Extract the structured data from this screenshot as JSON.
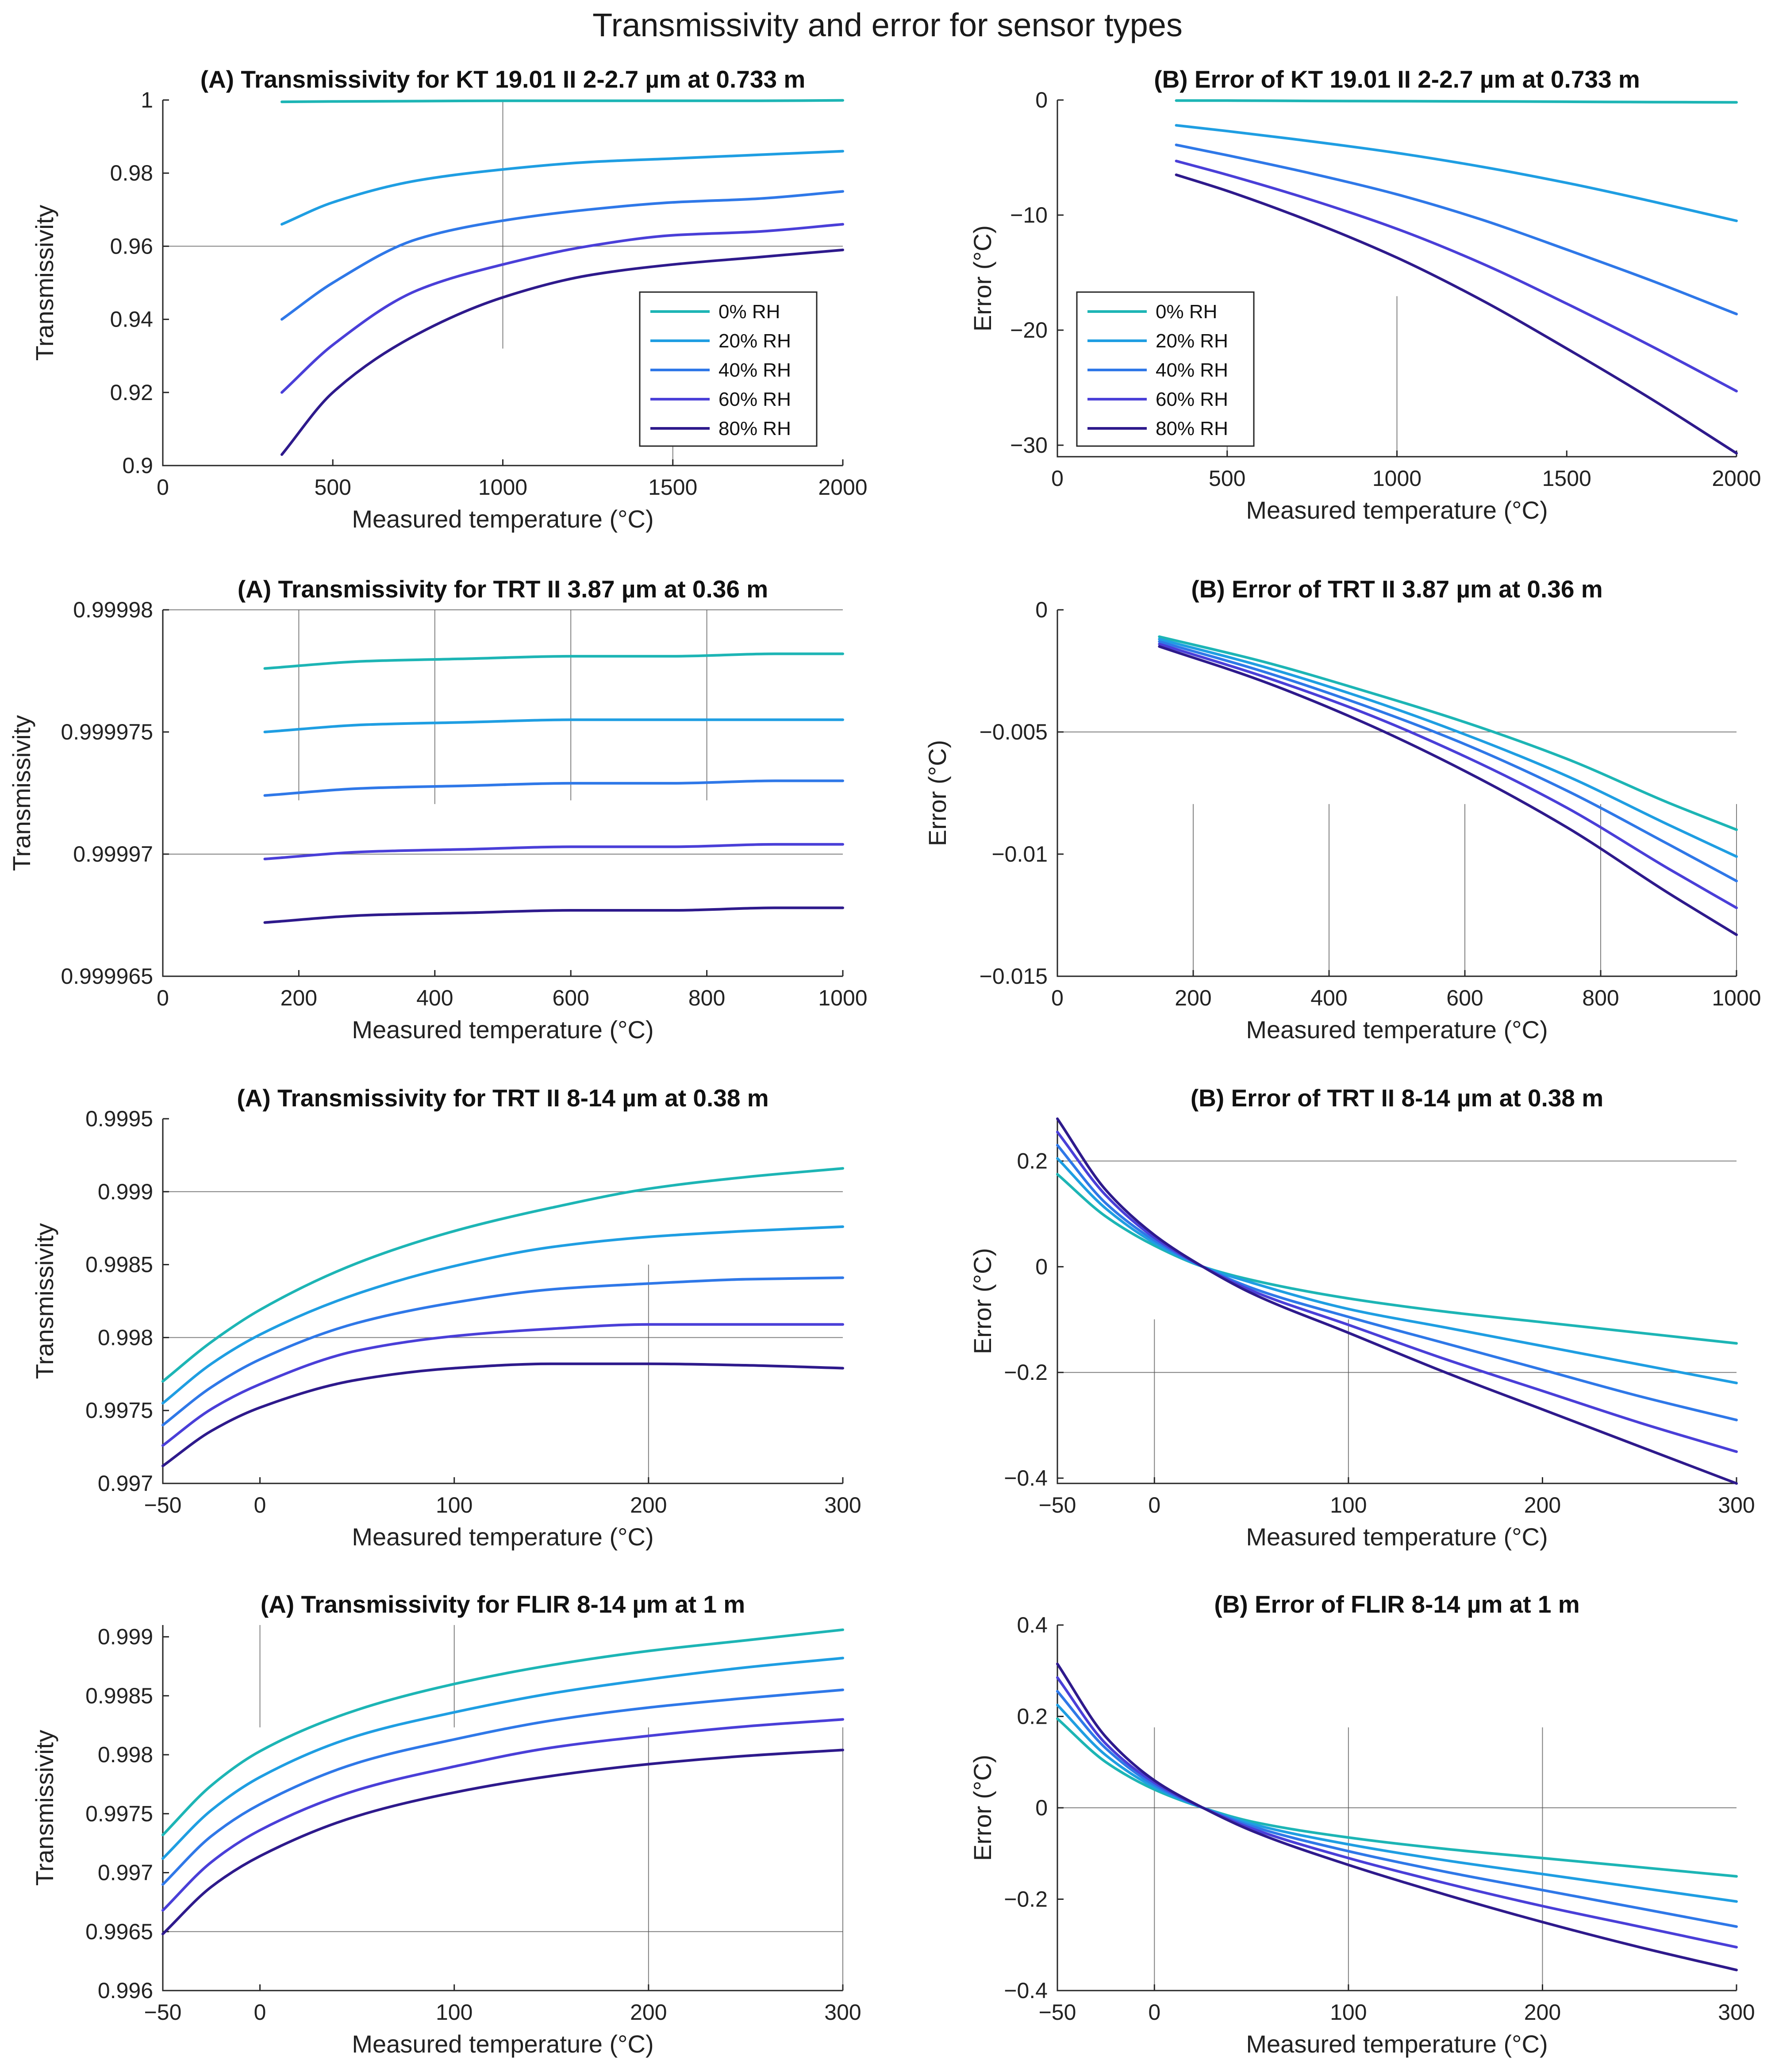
{
  "figure": {
    "title": "Transmissivity and error for sensor types"
  },
  "legend": {
    "labels": [
      "0% RH",
      "20% RH",
      "40% RH",
      "60% RH",
      "80% RH"
    ]
  },
  "colors": [
    "#1db5b5",
    "#1f9ee2",
    "#2f78e8",
    "#4a3fd8",
    "#2e1a8c"
  ],
  "chart_data": [
    {
      "id": "kt_trans",
      "type": "line",
      "title": "(A) Transmissivity for KT 19.01 II 2-2.7 µm at 0.733 m",
      "xlabel": "Measured temperature (°C)",
      "ylabel": "Transmissivity",
      "xlim": [
        0,
        2000
      ],
      "ylim": [
        0.9,
        1
      ],
      "xticks": [
        0,
        500,
        1000,
        1500,
        2000
      ],
      "xtick_labels": [
        "0",
        "500",
        "1000",
        "1500",
        "2000"
      ],
      "yticks": [
        0.9,
        0.92,
        0.94,
        0.96,
        0.98,
        1
      ],
      "ytick_labels": [
        "0.9",
        "0.92",
        "0.94",
        "0.96",
        "0.98",
        "1"
      ],
      "legend": true,
      "x": [
        350,
        500,
        750,
        1000,
        1250,
        1500,
        1750,
        2000
      ],
      "series": [
        {
          "name": "0% RH",
          "values": [
            0.9995,
            0.9996,
            0.9997,
            0.9998,
            0.9998,
            0.9998,
            0.9998,
            0.9999
          ]
        },
        {
          "name": "20% RH",
          "values": [
            0.966,
            0.972,
            0.978,
            0.981,
            0.983,
            0.984,
            0.985,
            0.986
          ]
        },
        {
          "name": "40% RH",
          "values": [
            0.94,
            0.95,
            0.962,
            0.967,
            0.97,
            0.972,
            0.973,
            0.975
          ]
        },
        {
          "name": "60% RH",
          "values": [
            0.92,
            0.933,
            0.948,
            0.955,
            0.96,
            0.963,
            0.964,
            0.966
          ]
        },
        {
          "name": "80% RH",
          "values": [
            0.903,
            0.92,
            0.936,
            0.946,
            0.952,
            0.955,
            0.957,
            0.959
          ]
        }
      ]
    },
    {
      "id": "kt_err",
      "type": "line",
      "title": "(B) Error of KT 19.01 II 2-2.7 µm at 0.733 m",
      "xlabel": "Measured temperature (°C)",
      "ylabel": "Error (°C)",
      "xlim": [
        0,
        2000
      ],
      "ylim": [
        -31,
        0
      ],
      "xticks": [
        0,
        500,
        1000,
        1500,
        2000
      ],
      "xtick_labels": [
        "0",
        "500",
        "1000",
        "1500",
        "2000"
      ],
      "yticks": [
        -30,
        -20,
        -10,
        0
      ],
      "ytick_labels": [
        "−30",
        "−20",
        "−10",
        "0"
      ],
      "legend": true,
      "x": [
        350,
        500,
        750,
        1000,
        1250,
        1500,
        1750,
        2000
      ],
      "series": [
        {
          "name": "0% RH",
          "values": [
            -0.05,
            -0.05,
            -0.08,
            -0.1,
            -0.12,
            -0.15,
            -0.18,
            -0.2
          ]
        },
        {
          "name": "20% RH",
          "values": [
            -2.2,
            -2.7,
            -3.6,
            -4.6,
            -5.8,
            -7.2,
            -8.8,
            -10.5
          ]
        },
        {
          "name": "40% RH",
          "values": [
            -3.9,
            -4.8,
            -6.4,
            -8.2,
            -10.4,
            -13.0,
            -15.7,
            -18.6
          ]
        },
        {
          "name": "60% RH",
          "values": [
            -5.3,
            -6.5,
            -8.7,
            -11.2,
            -14.2,
            -17.7,
            -21.4,
            -25.3
          ]
        },
        {
          "name": "80% RH",
          "values": [
            -6.5,
            -7.9,
            -10.6,
            -13.7,
            -17.4,
            -21.6,
            -26.0,
            -30.7
          ]
        }
      ]
    },
    {
      "id": "trt387_trans",
      "type": "line",
      "title": "(A) Transmissivity for TRT II 3.87 µm at 0.36 m",
      "xlabel": "Measured temperature (°C)",
      "ylabel": "Transmissivity",
      "xlim": [
        0,
        1000
      ],
      "ylim": [
        0.999965,
        0.99998
      ],
      "xticks": [
        0,
        200,
        400,
        600,
        800,
        1000
      ],
      "xtick_labels": [
        "0",
        "200",
        "400",
        "600",
        "800",
        "1000"
      ],
      "yticks": [
        0.999965,
        0.99997,
        0.999975,
        0.99998
      ],
      "ytick_labels": [
        "0.999965",
        "0.99997",
        "0.999975",
        "0.99998"
      ],
      "legend": false,
      "x": [
        150,
        300,
        450,
        600,
        750,
        900,
        1000
      ],
      "series": [
        {
          "name": "0% RH",
          "values": [
            0.9999776,
            0.9999779,
            0.999978,
            0.9999781,
            0.9999781,
            0.9999782,
            0.9999782
          ]
        },
        {
          "name": "20% RH",
          "values": [
            0.999975,
            0.9999753,
            0.9999754,
            0.9999755,
            0.9999755,
            0.9999755,
            0.9999755
          ]
        },
        {
          "name": "40% RH",
          "values": [
            0.9999724,
            0.9999727,
            0.9999728,
            0.9999729,
            0.9999729,
            0.999973,
            0.999973
          ]
        },
        {
          "name": "60% RH",
          "values": [
            0.9999698,
            0.9999701,
            0.9999702,
            0.9999703,
            0.9999703,
            0.9999704,
            0.9999704
          ]
        },
        {
          "name": "80% RH",
          "values": [
            0.9999672,
            0.9999675,
            0.9999676,
            0.9999677,
            0.9999677,
            0.9999678,
            0.9999678
          ]
        }
      ]
    },
    {
      "id": "trt387_err",
      "type": "line",
      "title": "(B) Error of TRT II 3.87 µm at 0.36 m",
      "xlabel": "Measured temperature (°C)",
      "ylabel": "Error (°C)",
      "xlim": [
        0,
        1000
      ],
      "ylim": [
        -0.015,
        0
      ],
      "xticks": [
        0,
        200,
        400,
        600,
        800,
        1000
      ],
      "xtick_labels": [
        "0",
        "200",
        "400",
        "600",
        "800",
        "1000"
      ],
      "yticks": [
        -0.015,
        -0.01,
        -0.005,
        0
      ],
      "ytick_labels": [
        "−0.015",
        "−0.01",
        "−0.005",
        "0"
      ],
      "legend": false,
      "x": [
        150,
        300,
        450,
        600,
        750,
        900,
        1000
      ],
      "series": [
        {
          "name": "0% RH",
          "values": [
            -0.0011,
            -0.0021,
            -0.0033,
            -0.0046,
            -0.0061,
            -0.0079,
            -0.009
          ]
        },
        {
          "name": "20% RH",
          "values": [
            -0.0012,
            -0.0023,
            -0.0036,
            -0.0051,
            -0.0068,
            -0.0088,
            -0.0101
          ]
        },
        {
          "name": "40% RH",
          "values": [
            -0.0013,
            -0.0025,
            -0.0039,
            -0.0055,
            -0.0074,
            -0.0096,
            -0.0111
          ]
        },
        {
          "name": "60% RH",
          "values": [
            -0.0014,
            -0.0027,
            -0.0042,
            -0.006,
            -0.0081,
            -0.0106,
            -0.0122
          ]
        },
        {
          "name": "80% RH",
          "values": [
            -0.0015,
            -0.0029,
            -0.0046,
            -0.0066,
            -0.0089,
            -0.0116,
            -0.0133
          ]
        }
      ]
    },
    {
      "id": "trt814_trans",
      "type": "line",
      "title": "(A) Transmissivity for TRT II 8-14 µm at 0.38 m",
      "xlabel": "Measured temperature (°C)",
      "ylabel": "Transmissivity",
      "xlim": [
        -50,
        300
      ],
      "ylim": [
        0.997,
        0.9995
      ],
      "xticks": [
        -50,
        0,
        100,
        200,
        300
      ],
      "xtick_labels": [
        "−50",
        "0",
        "100",
        "200",
        "300"
      ],
      "yticks": [
        0.997,
        0.9975,
        0.998,
        0.9985,
        0.999,
        0.9995
      ],
      "ytick_labels": [
        "0.997",
        "0.9975",
        "0.998",
        "0.9985",
        "0.999",
        "0.9995"
      ],
      "legend": false,
      "x": [
        -50,
        -25,
        0,
        50,
        100,
        150,
        200,
        250,
        300
      ],
      "series": [
        {
          "name": "0% RH",
          "values": [
            0.9977,
            0.99797,
            0.99819,
            0.99851,
            0.99873,
            0.99889,
            0.99902,
            0.9991,
            0.99916
          ]
        },
        {
          "name": "20% RH",
          "values": [
            0.99755,
            0.99782,
            0.99802,
            0.9983,
            0.99849,
            0.99862,
            0.99869,
            0.99873,
            0.99876
          ]
        },
        {
          "name": "40% RH",
          "values": [
            0.9974,
            0.99766,
            0.99785,
            0.9981,
            0.99824,
            0.99833,
            0.99837,
            0.9984,
            0.99841
          ]
        },
        {
          "name": "60% RH",
          "values": [
            0.99726,
            0.99751,
            0.99768,
            0.99791,
            0.99801,
            0.99806,
            0.99809,
            0.99809,
            0.99809
          ]
        },
        {
          "name": "80% RH",
          "values": [
            0.99712,
            0.99736,
            0.99752,
            0.99771,
            0.99779,
            0.99782,
            0.99782,
            0.99781,
            0.99779
          ]
        }
      ]
    },
    {
      "id": "trt814_err",
      "type": "line",
      "title": "(B) Error of TRT II 8-14 µm at 0.38 m",
      "xlabel": "Measured temperature (°C)",
      "ylabel": "Error (°C)",
      "xlim": [
        -50,
        300
      ],
      "ylim": [
        -0.41,
        0.28
      ],
      "xticks": [
        -50,
        0,
        100,
        200,
        300
      ],
      "xtick_labels": [
        "−50",
        "0",
        "100",
        "200",
        "300"
      ],
      "yticks": [
        -0.4,
        -0.2,
        0,
        0.2
      ],
      "ytick_labels": [
        "−0.4",
        "−0.2",
        "0",
        "0.2"
      ],
      "legend": false,
      "x": [
        -50,
        -25,
        0,
        25,
        50,
        100,
        150,
        200,
        250,
        300
      ],
      "series": [
        {
          "name": "0% RH",
          "values": [
            0.175,
            0.095,
            0.04,
            0.0,
            -0.025,
            -0.06,
            -0.085,
            -0.105,
            -0.125,
            -0.145
          ]
        },
        {
          "name": "20% RH",
          "values": [
            0.205,
            0.11,
            0.045,
            0.0,
            -0.03,
            -0.08,
            -0.115,
            -0.15,
            -0.185,
            -0.22
          ]
        },
        {
          "name": "40% RH",
          "values": [
            0.23,
            0.12,
            0.05,
            0.0,
            -0.04,
            -0.095,
            -0.145,
            -0.195,
            -0.245,
            -0.29
          ]
        },
        {
          "name": "60% RH",
          "values": [
            0.255,
            0.135,
            0.055,
            0.0,
            -0.045,
            -0.11,
            -0.175,
            -0.235,
            -0.295,
            -0.35
          ]
        },
        {
          "name": "80% RH",
          "values": [
            0.28,
            0.145,
            0.06,
            0.0,
            -0.05,
            -0.125,
            -0.2,
            -0.27,
            -0.34,
            -0.41
          ]
        }
      ]
    },
    {
      "id": "flir_trans",
      "type": "line",
      "title": "(A) Transmissivity for FLIR 8-14 µm at 1 m",
      "xlabel": "Measured temperature (°C)",
      "ylabel": "Transmissivity",
      "xlim": [
        -50,
        300
      ],
      "ylim": [
        0.996,
        0.9991
      ],
      "xticks": [
        -50,
        0,
        100,
        200,
        300
      ],
      "xtick_labels": [
        "−50",
        "0",
        "100",
        "200",
        "300"
      ],
      "yticks": [
        0.996,
        0.9965,
        0.997,
        0.9975,
        0.998,
        0.9985,
        0.999
      ],
      "ytick_labels": [
        "0.996",
        "0.9965",
        "0.997",
        "0.9975",
        "0.998",
        "0.9985",
        "0.999"
      ],
      "legend": false,
      "x": [
        -50,
        -25,
        0,
        50,
        100,
        150,
        200,
        250,
        300
      ],
      "series": [
        {
          "name": "0% RH",
          "values": [
            0.99732,
            0.99774,
            0.99803,
            0.99838,
            0.9986,
            0.99876,
            0.99888,
            0.99897,
            0.99906
          ]
        },
        {
          "name": "20% RH",
          "values": [
            0.99712,
            0.99753,
            0.99781,
            0.99816,
            0.99836,
            0.99852,
            0.99864,
            0.99874,
            0.99882
          ]
        },
        {
          "name": "40% RH",
          "values": [
            0.9969,
            0.99731,
            0.99758,
            0.99793,
            0.99813,
            0.99829,
            0.9984,
            0.99848,
            0.99855
          ]
        },
        {
          "name": "60% RH",
          "values": [
            0.99668,
            0.99709,
            0.99736,
            0.9977,
            0.9979,
            0.99806,
            0.99816,
            0.99824,
            0.9983
          ]
        },
        {
          "name": "80% RH",
          "values": [
            0.99648,
            0.99688,
            0.99714,
            0.99748,
            0.99768,
            0.99782,
            0.99792,
            0.99799,
            0.99804
          ]
        }
      ]
    },
    {
      "id": "flir_err",
      "type": "line",
      "title": "(B) Error of FLIR 8-14 µm at 1 m",
      "xlabel": "Measured temperature (°C)",
      "ylabel": "Error (°C)",
      "xlim": [
        -50,
        300
      ],
      "ylim": [
        -0.4,
        0.4
      ],
      "xticks": [
        -50,
        0,
        100,
        200,
        300
      ],
      "xtick_labels": [
        "−50",
        "0",
        "100",
        "200",
        "300"
      ],
      "yticks": [
        -0.4,
        -0.2,
        0,
        0.2,
        0.4
      ],
      "ytick_labels": [
        "−0.4",
        "−0.2",
        "0",
        "0.2",
        "0.4"
      ],
      "legend": false,
      "x": [
        -50,
        -25,
        0,
        25,
        50,
        100,
        150,
        200,
        250,
        300
      ],
      "series": [
        {
          "name": "0% RH",
          "values": [
            0.195,
            0.1,
            0.04,
            0.0,
            -0.03,
            -0.065,
            -0.09,
            -0.11,
            -0.13,
            -0.15
          ]
        },
        {
          "name": "20% RH",
          "values": [
            0.225,
            0.115,
            0.045,
            0.0,
            -0.035,
            -0.08,
            -0.115,
            -0.145,
            -0.175,
            -0.205
          ]
        },
        {
          "name": "40% RH",
          "values": [
            0.255,
            0.13,
            0.05,
            0.0,
            -0.04,
            -0.095,
            -0.14,
            -0.18,
            -0.22,
            -0.26
          ]
        },
        {
          "name": "60% RH",
          "values": [
            0.285,
            0.14,
            0.055,
            0.0,
            -0.045,
            -0.11,
            -0.165,
            -0.215,
            -0.26,
            -0.305
          ]
        },
        {
          "name": "80% RH",
          "values": [
            0.315,
            0.155,
            0.06,
            0.0,
            -0.05,
            -0.125,
            -0.19,
            -0.25,
            -0.305,
            -0.355
          ]
        }
      ]
    }
  ]
}
